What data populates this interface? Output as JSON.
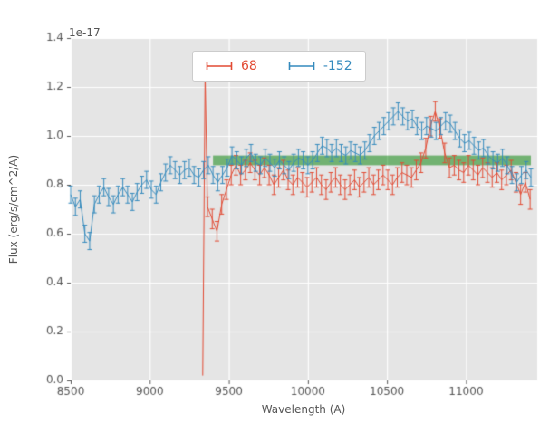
{
  "chart_data": {
    "type": "line",
    "title": "",
    "xlabel": "Wavelength (A)",
    "ylabel": "Flux (erg/s/cm^2/A)",
    "offset_text": "1e-17",
    "xlim": [
      8500,
      11450
    ],
    "ylim": [
      0.0,
      1.4
    ],
    "xticks": [
      8500,
      9000,
      9500,
      10000,
      10500,
      11000
    ],
    "yticks": [
      0.0,
      0.2,
      0.4,
      0.6,
      0.8,
      1.0,
      1.2,
      1.4
    ],
    "grid": true,
    "plot_background": "#e5e5e5",
    "grid_color": "#ffffff",
    "tick_color": "#555555",
    "legend_position": "upper center",
    "band": {
      "x0": 9400,
      "x1": 11410,
      "y0": 0.88,
      "y1": 0.92,
      "color": "#008000",
      "alpha": 0.5
    },
    "series": [
      {
        "name": "68",
        "color": "#e24a33",
        "x": [
          9335,
          9350,
          9365,
          9395,
          9425,
          9455,
          9485,
          9515,
          9545,
          9575,
          9605,
          9635,
          9665,
          9695,
          9725,
          9755,
          9785,
          9815,
          9845,
          9875,
          9905,
          9935,
          9965,
          9995,
          10025,
          10055,
          10085,
          10115,
          10145,
          10175,
          10205,
          10235,
          10265,
          10295,
          10325,
          10355,
          10385,
          10415,
          10445,
          10475,
          10505,
          10535,
          10565,
          10595,
          10625,
          10655,
          10685,
          10715,
          10745,
          10775,
          10805,
          10835,
          10865,
          10895,
          10925,
          10955,
          10985,
          11015,
          11045,
          11075,
          11105,
          11135,
          11165,
          11195,
          11225,
          11255,
          11285,
          11315,
          11345,
          11375,
          11405
        ],
        "y": [
          0.02,
          1.25,
          0.71,
          0.66,
          0.61,
          0.72,
          0.78,
          0.84,
          0.88,
          0.84,
          0.86,
          0.89,
          0.86,
          0.84,
          0.87,
          0.84,
          0.8,
          0.83,
          0.86,
          0.82,
          0.8,
          0.83,
          0.81,
          0.79,
          0.81,
          0.83,
          0.8,
          0.78,
          0.81,
          0.83,
          0.8,
          0.78,
          0.8,
          0.82,
          0.79,
          0.81,
          0.83,
          0.8,
          0.82,
          0.84,
          0.82,
          0.8,
          0.83,
          0.85,
          0.84,
          0.83,
          0.86,
          0.89,
          0.95,
          1.04,
          1.1,
          1.03,
          0.93,
          0.87,
          0.88,
          0.86,
          0.85,
          0.88,
          0.86,
          0.84,
          0.87,
          0.85,
          0.83,
          0.85,
          0.82,
          0.84,
          0.86,
          0.81,
          0.76,
          0.81,
          0.74
        ],
        "yerr": [
          0,
          0,
          0.04,
          0.04,
          0.04,
          0.04,
          0.04,
          0.04,
          0.04,
          0.04,
          0.04,
          0.04,
          0.04,
          0.04,
          0.04,
          0.04,
          0.04,
          0.04,
          0.04,
          0.04,
          0.04,
          0.04,
          0.04,
          0.04,
          0.04,
          0.04,
          0.04,
          0.04,
          0.04,
          0.04,
          0.04,
          0.04,
          0.04,
          0.04,
          0.04,
          0.04,
          0.04,
          0.04,
          0.04,
          0.04,
          0.04,
          0.04,
          0.04,
          0.04,
          0.04,
          0.04,
          0.04,
          0.04,
          0.04,
          0.04,
          0.04,
          0.04,
          0.04,
          0.04,
          0.04,
          0.04,
          0.04,
          0.04,
          0.04,
          0.04,
          0.04,
          0.04,
          0.04,
          0.04,
          0.04,
          0.04,
          0.04,
          0.04,
          0.04,
          0.04,
          0.04
        ]
      },
      {
        "name": "-152",
        "color": "#348abd",
        "x": [
          8500,
          8530,
          8560,
          8590,
          8620,
          8650,
          8680,
          8710,
          8740,
          8770,
          8800,
          8830,
          8860,
          8890,
          8920,
          8950,
          8980,
          9010,
          9040,
          9070,
          9100,
          9130,
          9160,
          9190,
          9220,
          9250,
          9280,
          9310,
          9340,
          9370,
          9400,
          9430,
          9460,
          9490,
          9520,
          9550,
          9580,
          9610,
          9640,
          9670,
          9700,
          9730,
          9760,
          9790,
          9820,
          9850,
          9880,
          9910,
          9940,
          9970,
          10000,
          10030,
          10060,
          10090,
          10120,
          10150,
          10180,
          10210,
          10240,
          10270,
          10300,
          10330,
          10360,
          10390,
          10420,
          10450,
          10480,
          10510,
          10540,
          10570,
          10600,
          10630,
          10660,
          10690,
          10720,
          10750,
          10780,
          10810,
          10840,
          10870,
          10900,
          10930,
          10960,
          10990,
          11020,
          11050,
          11080,
          11110,
          11140,
          11170,
          11200,
          11230,
          11260,
          11290,
          11320,
          11350,
          11380,
          11410
        ],
        "y": [
          0.76,
          0.71,
          0.74,
          0.6,
          0.57,
          0.72,
          0.76,
          0.79,
          0.75,
          0.72,
          0.76,
          0.79,
          0.76,
          0.73,
          0.77,
          0.8,
          0.82,
          0.78,
          0.76,
          0.81,
          0.85,
          0.88,
          0.86,
          0.84,
          0.86,
          0.87,
          0.84,
          0.83,
          0.86,
          0.88,
          0.84,
          0.81,
          0.84,
          0.87,
          0.92,
          0.9,
          0.88,
          0.91,
          0.93,
          0.89,
          0.88,
          0.91,
          0.89,
          0.87,
          0.9,
          0.88,
          0.86,
          0.89,
          0.91,
          0.9,
          0.88,
          0.9,
          0.93,
          0.96,
          0.95,
          0.93,
          0.95,
          0.93,
          0.92,
          0.94,
          0.93,
          0.92,
          0.94,
          0.97,
          1.0,
          1.02,
          1.04,
          1.06,
          1.08,
          1.1,
          1.08,
          1.06,
          1.07,
          1.04,
          1.02,
          1.04,
          1.03,
          1.02,
          1.04,
          1.06,
          1.05,
          1.02,
          0.99,
          0.97,
          0.98,
          0.96,
          0.94,
          0.95,
          0.92,
          0.9,
          0.89,
          0.91,
          0.88,
          0.84,
          0.81,
          0.84,
          0.86,
          0.83
        ],
        "yerr": 0.035
      }
    ]
  }
}
